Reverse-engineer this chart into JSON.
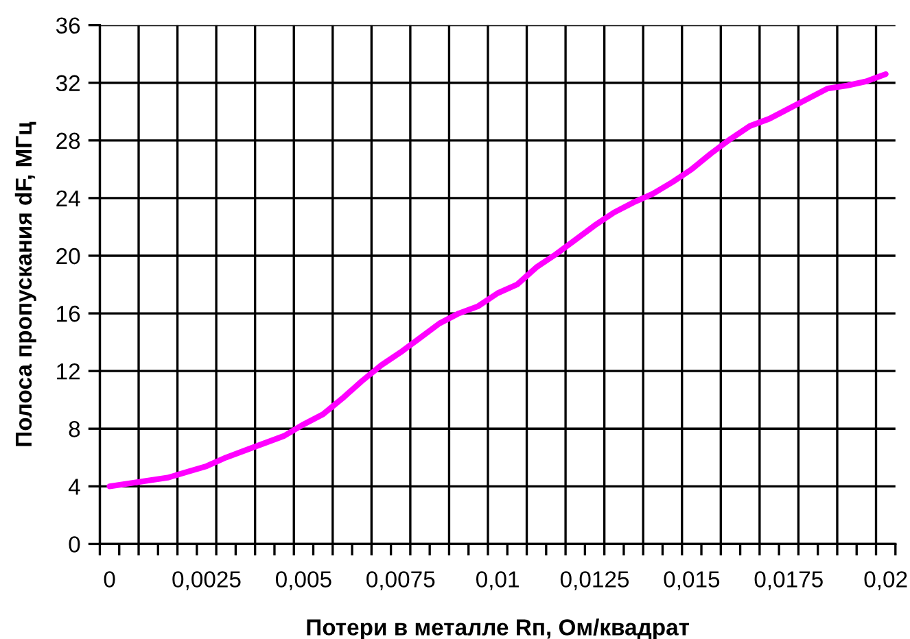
{
  "chart_data": {
    "type": "line",
    "xlabel": "Потери в металле Rп, Ом/квадрат",
    "ylabel": "Полоса пропускания dF, МГц",
    "categories": [
      "0",
      null,
      null,
      null,
      null,
      "0,0025",
      null,
      null,
      null,
      null,
      "0,005",
      null,
      null,
      null,
      null,
      "0,0075",
      null,
      null,
      null,
      null,
      "0,01",
      null,
      null,
      null,
      null,
      "0,0125",
      null,
      null,
      null,
      null,
      "0,015",
      null,
      null,
      null,
      null,
      "0,0175",
      null,
      null,
      null,
      null,
      "0,02"
    ],
    "values": [
      4.0,
      4.2,
      4.4,
      4.6,
      5.0,
      5.4,
      6.0,
      6.5,
      7.0,
      7.5,
      8.3,
      9.0,
      10.1,
      11.3,
      12.4,
      13.3,
      14.3,
      15.3,
      16.0,
      16.5,
      17.4,
      18.0,
      19.2,
      20.1,
      21.1,
      22.1,
      23.0,
      23.7,
      24.3,
      25.1,
      26.0,
      27.1,
      28.1,
      29.0,
      29.5,
      30.2,
      30.9,
      31.6,
      31.8,
      32.1,
      32.6
    ],
    "color": "#ff00ff",
    "ylim": [
      0,
      36
    ],
    "yticks": [
      0,
      4,
      8,
      12,
      16,
      20,
      24,
      28,
      32,
      36
    ],
    "grid": true,
    "line_style": "solid"
  }
}
